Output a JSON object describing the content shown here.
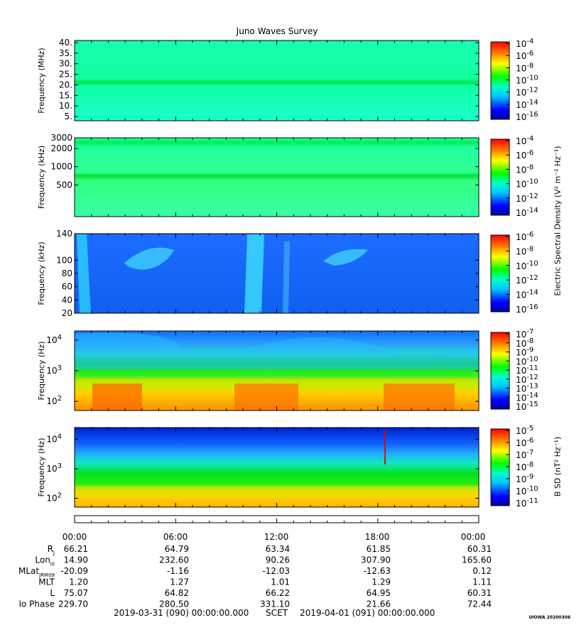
{
  "title": "Juno Waves Survey",
  "chart_data": [
    {
      "type": "heatmap",
      "panel": "hfwbr",
      "ylabel": "Frequency (MHz)",
      "yticks": [
        "40.",
        "35.",
        "30.",
        "25.",
        "20.",
        "15.",
        "10.",
        "5."
      ],
      "yrange": [
        3,
        41
      ],
      "scale": "linear",
      "colorbar_ticks": [
        "10",
        "10",
        "10",
        "10",
        "10",
        "10",
        "10"
      ],
      "colorbar_exps": [
        "-4",
        "-6",
        "-8",
        "-10",
        "-12",
        "-14",
        "-16"
      ],
      "features": [
        {
          "band_center_mhz": 21,
          "level": "-11"
        }
      ],
      "background_level": "-12"
    },
    {
      "type": "heatmap",
      "panel": "hfr",
      "ylabel": "Frequency (kHz)",
      "yticks": [
        "3000",
        "2000",
        "1000",
        "500"
      ],
      "scale": "log",
      "yrange": [
        150,
        3000
      ],
      "colorbar_ticks": [
        "10",
        "10",
        "10",
        "10",
        "10",
        "10"
      ],
      "colorbar_exps": [
        "-4",
        "-6",
        "-8",
        "-10",
        "-12",
        "-14"
      ],
      "features": [
        {
          "band_center_khz": 2200,
          "level": "-11"
        },
        {
          "band_center_khz": 650,
          "level": "-10"
        }
      ],
      "background_level": "-12"
    },
    {
      "type": "heatmap",
      "panel": "lfr-high",
      "ylabel": "Frequency (kHz)",
      "yticks": [
        "140",
        "100",
        "80",
        "60",
        "40",
        "20"
      ],
      "scale": "linear",
      "yrange": [
        20,
        140
      ],
      "colorbar_ticks": [
        "10",
        "10",
        "10",
        "10",
        "10",
        "10"
      ],
      "colorbar_exps": [
        "-6",
        "-8",
        "-10",
        "-12",
        "-14",
        "-16"
      ],
      "background_level": "-14"
    },
    {
      "type": "heatmap",
      "panel": "lfr-low",
      "ylabel": "Frequency (Hz)",
      "yticks": [
        "10",
        "10",
        "10"
      ],
      "ytick_exps": [
        "4",
        "3",
        "2"
      ],
      "scale": "log",
      "yrange": [
        50,
        20000
      ],
      "colorbar_ticks": [
        "10",
        "10",
        "10",
        "10",
        "10",
        "10",
        "10",
        "10",
        "10"
      ],
      "colorbar_exps": [
        "-7",
        "-8",
        "-9",
        "-10",
        "-11",
        "-12",
        "-13",
        "-14",
        "-15"
      ]
    },
    {
      "type": "heatmap",
      "panel": "magnetic",
      "ylabel": "Frequency (Hz)",
      "yticks": [
        "10",
        "10",
        "10"
      ],
      "ytick_exps": [
        "4",
        "3",
        "2"
      ],
      "scale": "log",
      "yrange": [
        50,
        25000
      ],
      "colorbar_ticks": [
        "10",
        "10",
        "10",
        "10",
        "10",
        "10",
        "10"
      ],
      "colorbar_exps": [
        "-5",
        "-6",
        "-7",
        "-8",
        "-9",
        "-10",
        "-11"
      ]
    }
  ],
  "colorbar_labels": {
    "electric": "Electric Spectral Density (V² m⁻² Hz⁻¹)",
    "magnetic": "B SD (nT² Hz⁻¹)"
  },
  "time_axis": [
    "00:00",
    "06:00",
    "12:00",
    "18:00",
    "00:00"
  ],
  "ephemeris": {
    "rows": [
      {
        "label": "R",
        "sub": "J",
        "values": [
          "66.21",
          "64.79",
          "63.34",
          "61.85",
          "60.31"
        ]
      },
      {
        "label": "Lon",
        "sub": "III",
        "values": [
          "14.90",
          "232.60",
          "90.26",
          "307.90",
          "165.60"
        ]
      },
      {
        "label": "MLat",
        "sub": "JRM09",
        "values": [
          "-20.09",
          "-1.16",
          "-12.03",
          "-12.63",
          "0.12"
        ]
      },
      {
        "label": "MLT",
        "sub": "",
        "values": [
          "1.20",
          "1.27",
          "1.01",
          "1.29",
          "1.11"
        ]
      },
      {
        "label": "L",
        "sub": "",
        "values": [
          "75.07",
          "64.82",
          "66.22",
          "64.95",
          "60.31"
        ]
      },
      {
        "label": "Io Phase",
        "sub": "",
        "values": [
          "229.70",
          "280.50",
          "331.10",
          "21.66",
          "72.44"
        ]
      }
    ]
  },
  "footer": {
    "start": "2019-03-31 (090) 00:00:00.000",
    "scet": "SCET",
    "end": "2019-04-01 (091) 00:00:00.000"
  },
  "stamp": "UIOWA 20200306"
}
